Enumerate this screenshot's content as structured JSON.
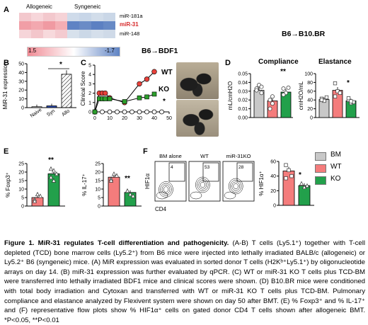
{
  "panels": {
    "A": {
      "letter": "A",
      "headers": [
        "Allogeneic",
        "Syngeneic"
      ],
      "rows": [
        {
          "label": "miR-181a",
          "highlight": false
        },
        {
          "label": "miR-31",
          "highlight": true
        },
        {
          "label": "miR-148",
          "highlight": false
        }
      ],
      "scale_min_label": "1.5",
      "scale_max_label": "-1.7",
      "title_right": "B6→B10.BR"
    },
    "B": {
      "letter": "B",
      "ylabel": "MiR-31 expression",
      "sig": "*",
      "chart_data": {
        "type": "bar",
        "categories": [
          "Naive",
          "Syn",
          "Allo"
        ],
        "values": [
          1,
          2,
          38
        ],
        "ylim": [
          0,
          50
        ],
        "yticks": [
          0,
          10,
          20,
          30,
          40,
          50
        ],
        "ylabel": "MiR-31 expression"
      }
    },
    "C": {
      "letter": "C",
      "title": "B6→BDF1",
      "ylabel": "Clinical Score",
      "sig": "*",
      "chart_data": {
        "type": "line",
        "x": [
          0,
          3,
          5,
          7,
          10,
          20,
          30,
          35,
          40
        ],
        "series": [
          {
            "name": "WT",
            "values": [
              0,
              2,
              2,
              2,
              1.5,
              1,
              3,
              3.5,
              4.3
            ],
            "color": "#e8413b"
          },
          {
            "name": "KO",
            "values": [
              0,
              1.4,
              1.4,
              1.4,
              1.4,
              1.1,
              1.5,
              1.6,
              1.9
            ],
            "color": "#2ca02c"
          }
        ],
        "bm_series": {
          "x": [
            0,
            5,
            10,
            15,
            20,
            25,
            30,
            35,
            40,
            45
          ],
          "values": [
            0,
            0,
            0,
            0,
            0,
            0,
            0,
            0,
            0,
            0
          ]
        },
        "ylim": [
          0,
          5
        ],
        "yticks": [
          0,
          1,
          2,
          3,
          4,
          5
        ],
        "xlim": [
          0,
          50
        ],
        "xticks": [
          0,
          10,
          20,
          30,
          40,
          50
        ]
      }
    },
    "D": {
      "letter": "D",
      "title_left": "Compliance",
      "title_right": "Elastance",
      "ylabel_left": "mL/cmH2O",
      "ylabel_right": "cmH2O/mL",
      "sig_left": "**",
      "sig_right": "*",
      "chart_data": [
        {
          "type": "bar",
          "title": "Compliance",
          "categories": [
            "BM",
            "WT",
            "KO"
          ],
          "values": [
            0.031,
            0.019,
            0.029
          ],
          "ylim": [
            0,
            0.05
          ],
          "yticks": [
            0,
            0.01,
            0.02,
            0.03,
            0.04,
            0.05
          ],
          "ylabel": "mL/cmH2O"
        },
        {
          "type": "bar",
          "title": "Elastance",
          "categories": [
            "BM",
            "WT",
            "KO"
          ],
          "values": [
            41,
            62,
            38
          ],
          "ylim": [
            0,
            100
          ],
          "yticks": [
            0,
            20,
            40,
            60,
            80,
            100
          ],
          "ylabel": "cmH2O/mL"
        }
      ]
    },
    "legend": {
      "items": [
        {
          "label": "BM",
          "color": "#c8c8c8"
        },
        {
          "label": "WT",
          "color": "#f47c7c"
        },
        {
          "label": "KO",
          "color": "#22a04b"
        }
      ]
    },
    "E": {
      "letter": "E",
      "ylabel_left": "% Foxp3⁺",
      "ylabel_right": "% IL-17⁺",
      "sig_left": "**",
      "sig_right": "**",
      "chart_data": [
        {
          "type": "bar",
          "categories": [
            "WT",
            "KO"
          ],
          "values": [
            5,
            19
          ],
          "ylim": [
            0,
            25
          ],
          "yticks": [
            0,
            5,
            10,
            15,
            20,
            25
          ],
          "ylabel": "% Foxp3+"
        },
        {
          "type": "bar",
          "categories": [
            "WT",
            "KO"
          ],
          "values": [
            17,
            8
          ],
          "ylim": [
            0,
            25
          ],
          "yticks": [
            0,
            5,
            10,
            15,
            20,
            25
          ],
          "ylabel": "% IL-17+"
        }
      ]
    },
    "F": {
      "letter": "F",
      "plot_titles": [
        "BM alone",
        "WT",
        "miR-31KO"
      ],
      "gate_values": [
        "4",
        "53",
        "28"
      ],
      "ylabel": "HIF1α",
      "xlabel": "CD4",
      "bar_ylabel": "% HIF1α⁺",
      "sig": "*",
      "chart_data": {
        "type": "bar",
        "categories": [
          "WT",
          "KO"
        ],
        "values": [
          47,
          27
        ],
        "ylim": [
          0,
          60
        ],
        "yticks": [
          0,
          20,
          40,
          60
        ],
        "ylabel": "% HIF1α+"
      }
    }
  },
  "caption": {
    "title": "Figure 1. MiR-31 regulates T-cell differentiation and pathogenicity.",
    "body": "(A-B) T cells (Ly5.1⁺) together with T-cell depleted (TCD) bone marrow cells (Ly5.2⁺) from B6 mice were injected into lethally irradiated BALB/c (allogeneic) or Ly5.2⁺ B6 (syngeneic) mice. (A) MiR expression was evaluated in sorted donor T cells (H2Kᵇ⁺Ly5.1⁺) by oligonucleotide arrays on day 14. (B) miR-31 expression was further evaluated by qPCR. (C) WT or miR-31 KO T cells plus TCD-BM were transferred into lethally irradiated BDF1 mice and clinical scores were shown. (D) B10.BR mice were conditioned with total body irradiation and Cytoxan and transferred with WT or miR-31 KO T cells plus TCD-BM. Pulmonary compliance and elastance analyzed by Flexivent system were shown on day 50 after BMT. (E) % Foxp3⁺ and % IL-17⁺ and (F) representative flow plots show % HIF1α⁺ cells on gated donor CD4 T cells shown after allogeneic BMT. *P<0.05, **P<0.01"
  }
}
